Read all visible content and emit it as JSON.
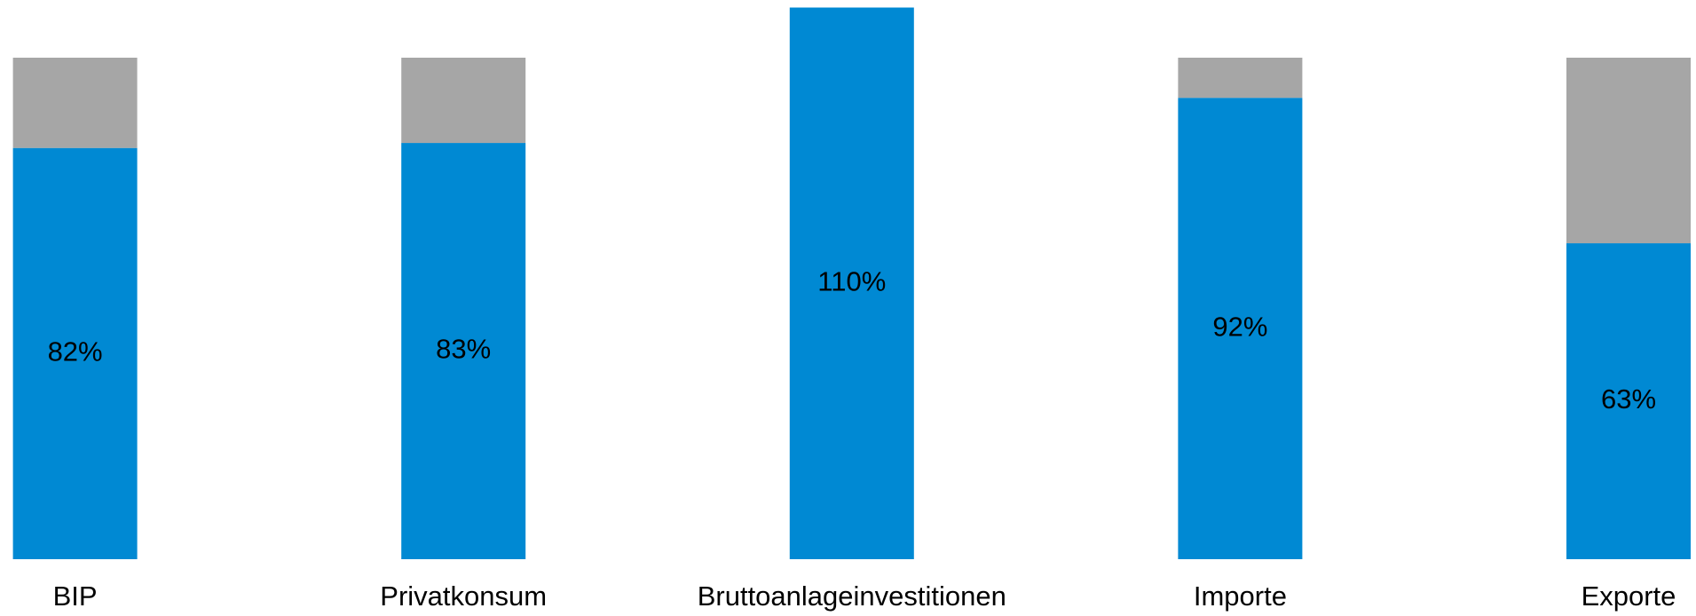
{
  "chart_data": {
    "type": "stacked-bar",
    "categories": [
      "BIP",
      "Privatkonsum",
      "Bruttoanlageinvestitionen",
      "Importe",
      "Exporte"
    ],
    "series": [
      {
        "color": "#0089d3",
        "values": [
          82,
          83,
          110,
          92,
          63
        ],
        "value_labels": [
          "82%",
          "83%",
          "110%",
          "92%",
          "63%"
        ]
      },
      {
        "color": "#a6a6a6",
        "values": [
          18,
          17,
          0,
          8,
          37
        ]
      }
    ],
    "ylim": [
      0,
      110
    ]
  }
}
